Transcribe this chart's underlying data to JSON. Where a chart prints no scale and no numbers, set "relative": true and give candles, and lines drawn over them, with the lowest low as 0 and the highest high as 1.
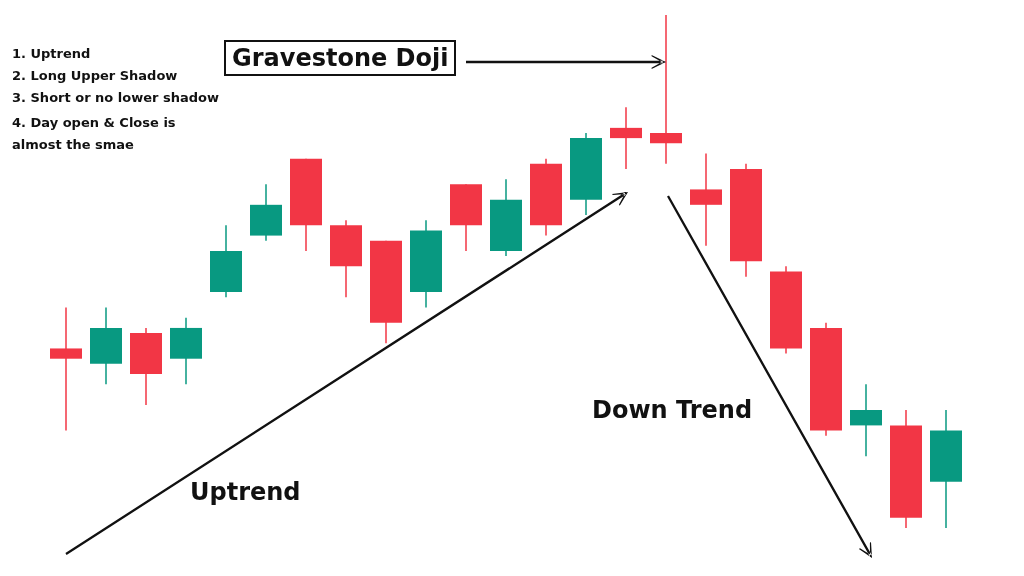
{
  "chart_data": {
    "type": "candlestick",
    "relative": true,
    "categories": [
      null,
      null,
      null,
      null,
      null,
      null,
      null,
      null,
      null,
      null,
      null,
      null,
      null,
      null,
      null,
      null,
      null,
      null,
      null,
      null,
      null,
      null,
      null
    ],
    "ohlc": [
      [
        0.35,
        0.43,
        0.19,
        0.33
      ],
      [
        0.32,
        0.43,
        0.28,
        0.39
      ],
      [
        0.38,
        0.39,
        0.24,
        0.3
      ],
      [
        0.33,
        0.41,
        0.28,
        0.39
      ],
      [
        0.46,
        0.59,
        0.45,
        0.54
      ],
      [
        0.57,
        0.67,
        0.56,
        0.63
      ],
      [
        0.72,
        0.72,
        0.54,
        0.59
      ],
      [
        0.59,
        0.6,
        0.45,
        0.51
      ],
      [
        0.56,
        0.56,
        0.36,
        0.4
      ],
      [
        0.46,
        0.6,
        0.43,
        0.58
      ],
      [
        0.67,
        0.67,
        0.54,
        0.59
      ],
      [
        0.54,
        0.68,
        0.53,
        0.64
      ],
      [
        0.71,
        0.72,
        0.57,
        0.59
      ],
      [
        0.64,
        0.77,
        0.61,
        0.76
      ],
      [
        0.78,
        0.82,
        0.7,
        0.76
      ],
      [
        0.77,
        1,
        0.71,
        0.75
      ],
      [
        0.66,
        0.73,
        0.55,
        0.63
      ],
      [
        0.7,
        0.71,
        0.49,
        0.52
      ],
      [
        0.5,
        0.51,
        0.34,
        0.35
      ],
      [
        0.39,
        0.4,
        0.18,
        0.19
      ],
      [
        0.2,
        0.28,
        0.14,
        0.23
      ],
      [
        0.2,
        0.23,
        0,
        0.02
      ],
      [
        0.09,
        0.23,
        0,
        0.19
      ]
    ],
    "colors": [
      "#f23645",
      "#089981",
      "#f23645",
      "#089981",
      "#089981",
      "#089981",
      "#f23645",
      "#f23645",
      "#f23645",
      "#089981",
      "#f23645",
      "#089981",
      "#f23645",
      "#089981",
      "#f23645",
      "#f23645",
      "#f23645",
      "#f23645",
      "#f23645",
      "#f23645",
      "#089981",
      "#f23645",
      "#089981"
    ],
    "annotations": [
      "1. Uptrend",
      "2. Long Upper Shadow",
      "3. Short or no lower shadow",
      "4. Day open & Close is almost the smae",
      "Gravestone Doji",
      "Uptrend",
      "Down Trend"
    ]
  }
}
